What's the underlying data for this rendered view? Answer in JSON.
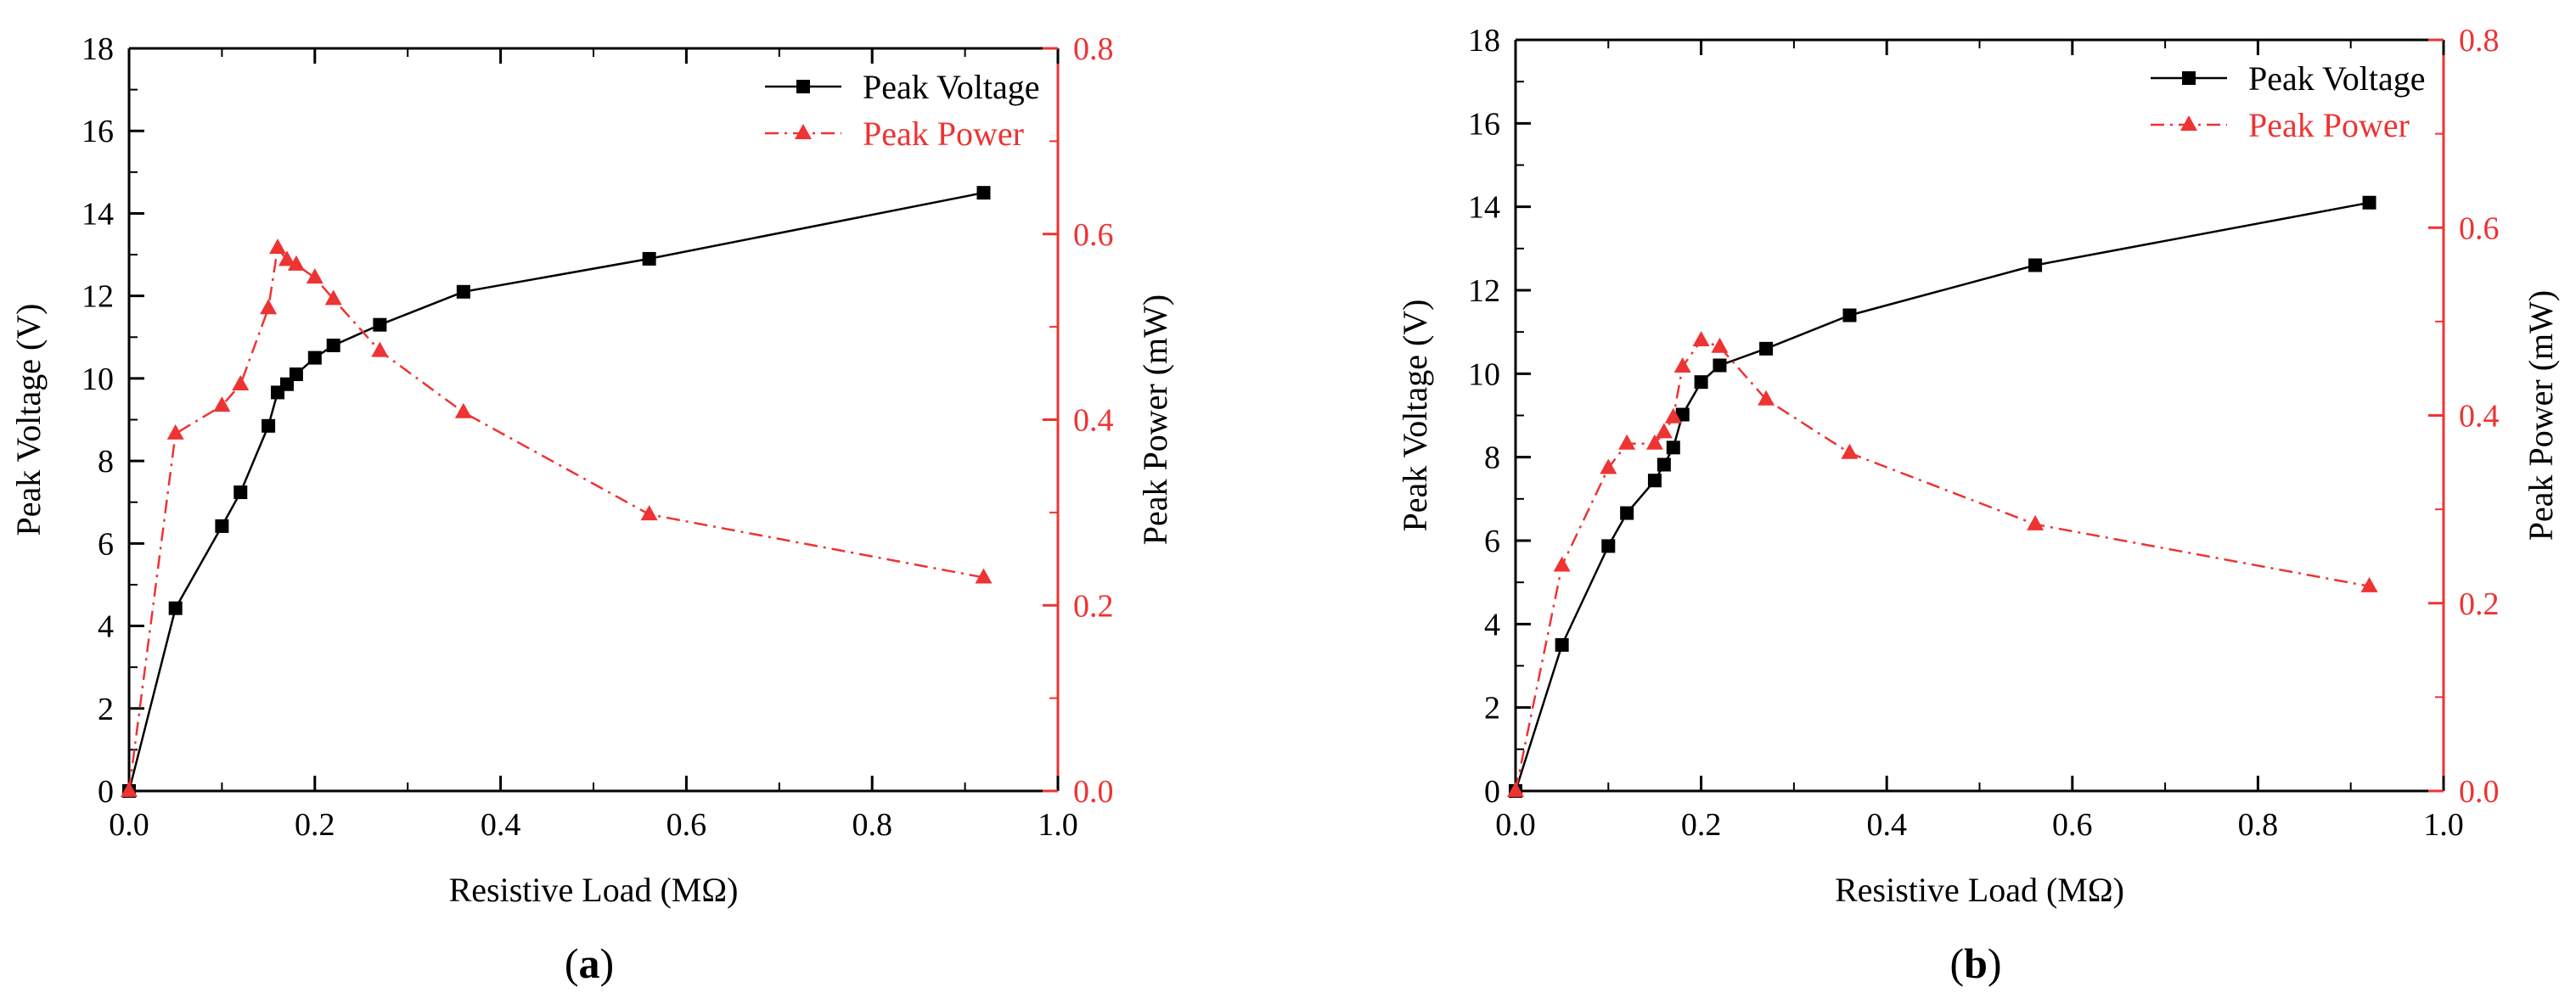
{
  "colors": {
    "voltage": "#000000",
    "power": "#ee3333",
    "axis": "#000000"
  },
  "chart_data": [
    {
      "type": "line",
      "panel_label": "a",
      "xlabel": "Resistive Load (MΩ)",
      "ylabel": "Peak Voltage (V)",
      "y2label": "Peak Power (mW)",
      "xlim": [
        0,
        1.0
      ],
      "ylim": [
        0,
        18
      ],
      "y2lim": [
        0,
        0.8
      ],
      "x_ticks": [
        "0.0",
        "0.2",
        "0.4",
        "0.6",
        "0.8",
        "1.0"
      ],
      "y_ticks": [
        "0",
        "2",
        "4",
        "6",
        "8",
        "10",
        "12",
        "14",
        "16",
        "18"
      ],
      "y2_ticks": [
        "0.0",
        "0.2",
        "0.4",
        "0.6",
        "0.8"
      ],
      "legend": [
        "Peak Voltage",
        "Peak Power"
      ],
      "series": [
        {
          "name": "Peak Voltage",
          "axis": "left",
          "marker": "square",
          "x": [
            0,
            0.05,
            0.1,
            0.12,
            0.15,
            0.16,
            0.17,
            0.18,
            0.2,
            0.22,
            0.27,
            0.36,
            0.56,
            0.92
          ],
          "values": [
            0,
            4.43,
            6.42,
            7.24,
            8.85,
            9.66,
            9.86,
            10.1,
            10.5,
            10.8,
            11.3,
            12.1,
            12.9,
            14.5
          ]
        },
        {
          "name": "Peak Power",
          "axis": "right",
          "marker": "triangle",
          "x": [
            0,
            0.05,
            0.1,
            0.12,
            0.15,
            0.16,
            0.17,
            0.18,
            0.2,
            0.22,
            0.27,
            0.36,
            0.56,
            0.92
          ],
          "values": [
            0,
            0.385,
            0.415,
            0.438,
            0.52,
            0.585,
            0.572,
            0.567,
            0.553,
            0.53,
            0.474,
            0.408,
            0.298,
            0.23
          ]
        }
      ]
    },
    {
      "type": "line",
      "panel_label": "b",
      "xlabel": "Resistive Load (MΩ)",
      "ylabel": "Peak Voltage (V)",
      "y2label": "Peak Power (mW)",
      "xlim": [
        0,
        1.0
      ],
      "ylim": [
        0,
        18
      ],
      "y2lim": [
        0,
        0.8
      ],
      "x_ticks": [
        "0.0",
        "0.2",
        "0.4",
        "0.6",
        "0.8",
        "1.0"
      ],
      "y_ticks": [
        "0",
        "2",
        "4",
        "6",
        "8",
        "10",
        "12",
        "14",
        "16",
        "18"
      ],
      "y2_ticks": [
        "0.0",
        "0.2",
        "0.4",
        "0.6",
        "0.8"
      ],
      "legend": [
        "Peak Voltage",
        "Peak Power"
      ],
      "series": [
        {
          "name": "Peak Voltage",
          "axis": "left",
          "marker": "square",
          "x": [
            0,
            0.05,
            0.1,
            0.12,
            0.15,
            0.16,
            0.17,
            0.18,
            0.2,
            0.22,
            0.27,
            0.36,
            0.56,
            0.92
          ],
          "values": [
            0,
            3.5,
            5.87,
            6.66,
            7.44,
            7.82,
            8.23,
            9.02,
            9.8,
            10.2,
            10.6,
            11.4,
            12.6,
            14.1
          ]
        },
        {
          "name": "Peak Power",
          "axis": "right",
          "marker": "triangle",
          "x": [
            0,
            0.05,
            0.1,
            0.12,
            0.15,
            0.16,
            0.17,
            0.18,
            0.2,
            0.22,
            0.27,
            0.36,
            0.56,
            0.92
          ],
          "values": [
            0,
            0.24,
            0.344,
            0.37,
            0.37,
            0.382,
            0.398,
            0.452,
            0.48,
            0.473,
            0.417,
            0.36,
            0.284,
            0.218
          ]
        }
      ]
    }
  ]
}
